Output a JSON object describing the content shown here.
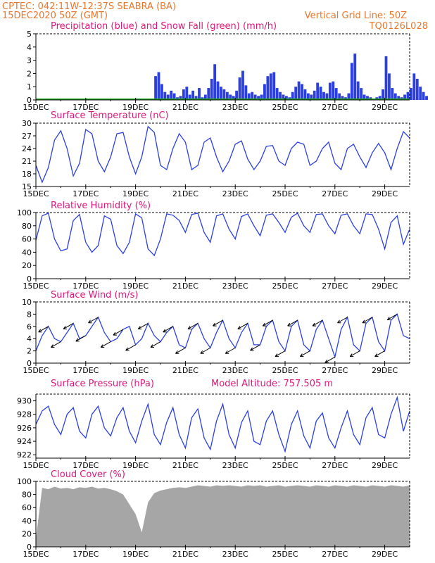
{
  "header": {
    "line1": "CPTEC:   042:11W-12:37S   SEABRA (BA)",
    "line2": "15DEC2020 50Z (GMT)",
    "grid_note": "Vertical Grid Line: 50Z",
    "model_id": "TQ0126L028"
  },
  "x_axis": {
    "tick_labels": [
      "15DEC",
      "17DEC",
      "19DEC",
      "21DEC",
      "23DEC",
      "25DEC",
      "27DEC",
      "29DEC"
    ],
    "tick_days": [
      0,
      2,
      4,
      6,
      8,
      10,
      12,
      14
    ],
    "range_days": [
      0,
      15
    ]
  },
  "chart_data": [
    {
      "type": "bar",
      "title": "Precipitation (blue) and Snow Fall (green) (mm/h)",
      "ylim": [
        0,
        5
      ],
      "yticks": [
        0,
        1,
        2,
        3,
        4,
        5
      ],
      "colors": {
        "precip": "#2b3fe0",
        "snow": "#1da81d"
      },
      "step_days": 0.125,
      "series": [
        {
          "name": "Precipitation",
          "start_day": 0,
          "values": [
            0,
            0,
            0,
            0,
            0,
            0,
            0,
            0,
            0,
            0,
            0,
            0,
            0,
            0,
            0,
            0,
            0,
            0,
            0,
            0,
            0,
            0,
            0,
            0,
            0,
            0,
            0,
            0,
            0,
            0,
            0,
            0,
            0,
            0,
            0,
            0,
            0,
            0,
            1.8,
            2.1,
            1.2,
            0.6,
            0.4,
            0.7,
            0.5,
            0.2,
            0.3,
            0.8,
            1.0,
            0.4,
            0.7,
            0.3,
            0.9,
            0.2,
            0.4,
            0.9,
            1.6,
            2.7,
            1.4,
            1.0,
            0.8,
            0.6,
            0.4,
            0.3,
            0.7,
            1.7,
            2.2,
            1.1,
            0.5,
            0.6,
            0.4,
            0.3,
            0.4,
            1.2,
            1.8,
            2.0,
            2.1,
            0.9,
            0.6,
            0.4,
            0.3,
            0.2,
            0.6,
            1.0,
            1.4,
            1.2,
            0.8,
            0.5,
            0.4,
            0.7,
            1.3,
            1.0,
            0.6,
            0.5,
            1.3,
            1.4,
            0.9,
            0.5,
            0.3,
            0.2,
            0.5,
            2.8,
            3.5,
            1.4,
            0.9,
            0.4,
            0.3,
            0.2,
            0.1,
            0.2,
            0.3,
            0.8,
            3.3,
            2.0,
            0.9,
            0.5,
            0.3,
            0.2,
            0.4,
            0.6,
            0.9,
            2.0,
            1.6,
            1.0,
            0.6,
            0.3,
            0,
            0,
            0,
            0,
            0,
            0,
            0,
            0,
            0,
            0,
            0,
            0,
            0,
            0,
            0,
            0,
            0,
            0,
            0,
            0,
            0
          ]
        }
      ]
    },
    {
      "type": "line",
      "title": "Surface Temperature (nC)",
      "ylim": [
        15,
        30
      ],
      "yticks": [
        15,
        18,
        21,
        24,
        27,
        30
      ],
      "color": "#2b3fe0",
      "x": [
        0,
        0.25,
        0.5,
        0.75,
        1,
        1.25,
        1.5,
        1.75,
        2,
        2.25,
        2.5,
        2.75,
        3,
        3.25,
        3.5,
        3.75,
        4,
        4.25,
        4.5,
        4.75,
        5,
        5.25,
        5.5,
        5.75,
        6,
        6.25,
        6.5,
        6.75,
        7,
        7.25,
        7.5,
        7.75,
        8,
        8.25,
        8.5,
        8.75,
        9,
        9.25,
        9.5,
        9.75,
        10,
        10.25,
        10.5,
        10.75,
        11,
        11.25,
        11.5,
        11.75,
        12,
        12.25,
        12.5,
        12.75,
        13,
        13.25,
        13.5,
        13.75,
        14,
        14.25,
        14.5,
        14.75,
        15
      ],
      "y": [
        20.0,
        16.0,
        19.5,
        26.0,
        28.2,
        24.0,
        17.5,
        20.5,
        28.5,
        27.5,
        21.0,
        18.5,
        22.0,
        27.5,
        27.8,
        22.0,
        18.0,
        22.0,
        29.2,
        27.8,
        20.0,
        19.0,
        24.0,
        27.5,
        25.5,
        19.0,
        20.0,
        25.5,
        26.5,
        22.0,
        18.5,
        21.0,
        25.0,
        25.8,
        21.5,
        19.0,
        21.0,
        24.5,
        24.7,
        21.0,
        20.0,
        24.0,
        25.5,
        25.0,
        20.0,
        21.0,
        24.0,
        25.5,
        20.5,
        19.0,
        24.0,
        25.0,
        22.0,
        19.5,
        23.0,
        25.2,
        23.0,
        19.0,
        24.0,
        28.0,
        26.5
      ]
    },
    {
      "type": "line",
      "title": "Relative Humidity (%)",
      "ylim": [
        0,
        100
      ],
      "yticks": [
        0,
        20,
        40,
        60,
        80,
        100
      ],
      "color": "#2b3fe0",
      "x": [
        0,
        0.25,
        0.5,
        0.75,
        1,
        1.25,
        1.5,
        1.75,
        2,
        2.25,
        2.5,
        2.75,
        3,
        3.25,
        3.5,
        3.75,
        4,
        4.25,
        4.5,
        4.75,
        5,
        5.25,
        5.5,
        5.75,
        6,
        6.25,
        6.5,
        6.75,
        7,
        7.25,
        7.5,
        7.75,
        8,
        8.25,
        8.5,
        8.75,
        9,
        9.25,
        9.5,
        9.75,
        10,
        10.25,
        10.5,
        10.75,
        11,
        11.25,
        11.5,
        11.75,
        12,
        12.25,
        12.5,
        12.75,
        13,
        13.25,
        13.5,
        13.75,
        14,
        14.25,
        14.5,
        14.75,
        15
      ],
      "y": [
        58,
        95,
        99,
        60,
        42,
        45,
        88,
        97,
        55,
        40,
        50,
        95,
        90,
        50,
        38,
        55,
        98,
        92,
        45,
        35,
        60,
        98,
        96,
        88,
        70,
        97,
        99,
        70,
        55,
        95,
        98,
        75,
        60,
        94,
        98,
        80,
        65,
        96,
        98,
        85,
        70,
        93,
        99,
        80,
        70,
        97,
        98,
        80,
        68,
        96,
        98,
        80,
        68,
        98,
        97,
        75,
        45,
        85,
        95,
        52,
        75
      ]
    },
    {
      "type": "line",
      "title": "Surface Wind (m/s)",
      "ylim": [
        0,
        10
      ],
      "yticks": [
        0,
        2,
        4,
        6,
        8,
        10
      ],
      "color": "#2b3fe0",
      "x": [
        0,
        0.25,
        0.5,
        0.75,
        1,
        1.25,
        1.5,
        1.75,
        2,
        2.25,
        2.5,
        2.75,
        3,
        3.25,
        3.5,
        3.75,
        4,
        4.25,
        4.5,
        4.75,
        5,
        5.25,
        5.5,
        5.75,
        6,
        6.25,
        6.5,
        6.75,
        7,
        7.25,
        7.5,
        7.75,
        8,
        8.25,
        8.5,
        8.75,
        9,
        9.25,
        9.5,
        9.75,
        10,
        10.25,
        10.5,
        10.75,
        11,
        11.25,
        11.5,
        11.75,
        12,
        12.25,
        12.5,
        12.75,
        13,
        13.25,
        13.5,
        13.75,
        14,
        14.25,
        14.5,
        14.75,
        15
      ],
      "y": [
        2.0,
        4.5,
        6.0,
        4.0,
        3.5,
        5.0,
        6.5,
        4.0,
        4.5,
        6.0,
        7.5,
        5.0,
        3.5,
        4.0,
        5.5,
        6.0,
        3.0,
        4.0,
        6.5,
        4.5,
        3.5,
        5.0,
        6.0,
        3.0,
        2.5,
        5.5,
        6.5,
        4.0,
        2.5,
        5.0,
        7.0,
        4.0,
        2.5,
        5.0,
        6.5,
        3.0,
        3.0,
        6.0,
        7.0,
        3.5,
        2.0,
        6.0,
        7.0,
        3.0,
        2.0,
        5.5,
        7.0,
        4.0,
        1.0,
        5.5,
        7.5,
        3.0,
        2.0,
        6.5,
        7.5,
        3.5,
        2.0,
        7.0,
        8.0,
        4.5,
        4.0
      ],
      "barbs_every_days": 0.5
    },
    {
      "type": "line",
      "title": "Surface Pressure (hPa)",
      "annotation": "Model Altitude: 757.505 m",
      "ylim": [
        921.5,
        931
      ],
      "yticks": [
        922,
        924,
        926,
        928,
        930
      ],
      "color": "#2b3fe0",
      "x": [
        0,
        0.25,
        0.5,
        0.75,
        1,
        1.25,
        1.5,
        1.75,
        2,
        2.25,
        2.5,
        2.75,
        3,
        3.25,
        3.5,
        3.75,
        4,
        4.25,
        4.5,
        4.75,
        5,
        5.25,
        5.5,
        5.75,
        6,
        6.25,
        6.5,
        6.75,
        7,
        7.25,
        7.5,
        7.75,
        8,
        8.25,
        8.5,
        8.75,
        9,
        9.25,
        9.5,
        9.75,
        10,
        10.25,
        10.5,
        10.75,
        11,
        11.25,
        11.5,
        11.75,
        12,
        12.25,
        12.5,
        12.75,
        13,
        13.25,
        13.5,
        13.75,
        14,
        14.25,
        14.5,
        14.75,
        15
      ],
      "y": [
        926.5,
        928.5,
        929.2,
        926.5,
        925.0,
        928.0,
        929.0,
        925.5,
        924.5,
        928.0,
        929.2,
        926.0,
        924.8,
        927.5,
        929.0,
        925.5,
        923.8,
        927.0,
        929.5,
        925.0,
        923.5,
        926.8,
        929.0,
        925.0,
        923.0,
        927.5,
        928.8,
        924.5,
        922.8,
        927.0,
        929.5,
        925.0,
        923.0,
        926.8,
        928.5,
        924.0,
        923.5,
        927.0,
        928.5,
        925.0,
        922.5,
        926.5,
        928.5,
        924.8,
        923.0,
        927.0,
        928.2,
        924.5,
        923.0,
        926.0,
        928.5,
        925.0,
        923.5,
        927.5,
        929.0,
        925.0,
        924.5,
        928.0,
        930.5,
        925.5,
        928.5
      ]
    },
    {
      "type": "area",
      "title": "Cloud Cover (%)",
      "ylim": [
        0,
        100
      ],
      "yticks": [
        0,
        20,
        40,
        60,
        80,
        100
      ],
      "color": "#a6a6a6",
      "x": [
        0,
        0.25,
        0.5,
        0.75,
        1,
        1.25,
        1.5,
        1.75,
        2,
        2.25,
        2.5,
        2.75,
        3,
        3.25,
        3.5,
        3.75,
        4,
        4.25,
        4.5,
        4.75,
        5,
        5.25,
        5.5,
        5.75,
        6,
        6.25,
        6.5,
        6.75,
        7,
        7.25,
        7.5,
        7.75,
        8,
        8.25,
        8.5,
        8.75,
        9,
        9.25,
        9.5,
        9.75,
        10,
        10.25,
        10.5,
        10.75,
        11,
        11.25,
        11.5,
        11.75,
        12,
        12.25,
        12.5,
        12.75,
        13,
        13.25,
        13.5,
        13.75,
        14,
        14.25,
        14.5,
        14.75,
        15
      ],
      "y": [
        12,
        90,
        88,
        92,
        89,
        90,
        88,
        91,
        90,
        92,
        89,
        90,
        88,
        85,
        80,
        65,
        50,
        22,
        68,
        82,
        86,
        88,
        90,
        91,
        90,
        92,
        94,
        93,
        92,
        94,
        93,
        94,
        93,
        92,
        94,
        93,
        94,
        92,
        93,
        94,
        92,
        93,
        94,
        93,
        92,
        94,
        93,
        92,
        94,
        93,
        92,
        94,
        93,
        92,
        94,
        93,
        92,
        94,
        93,
        92,
        94
      ]
    }
  ]
}
